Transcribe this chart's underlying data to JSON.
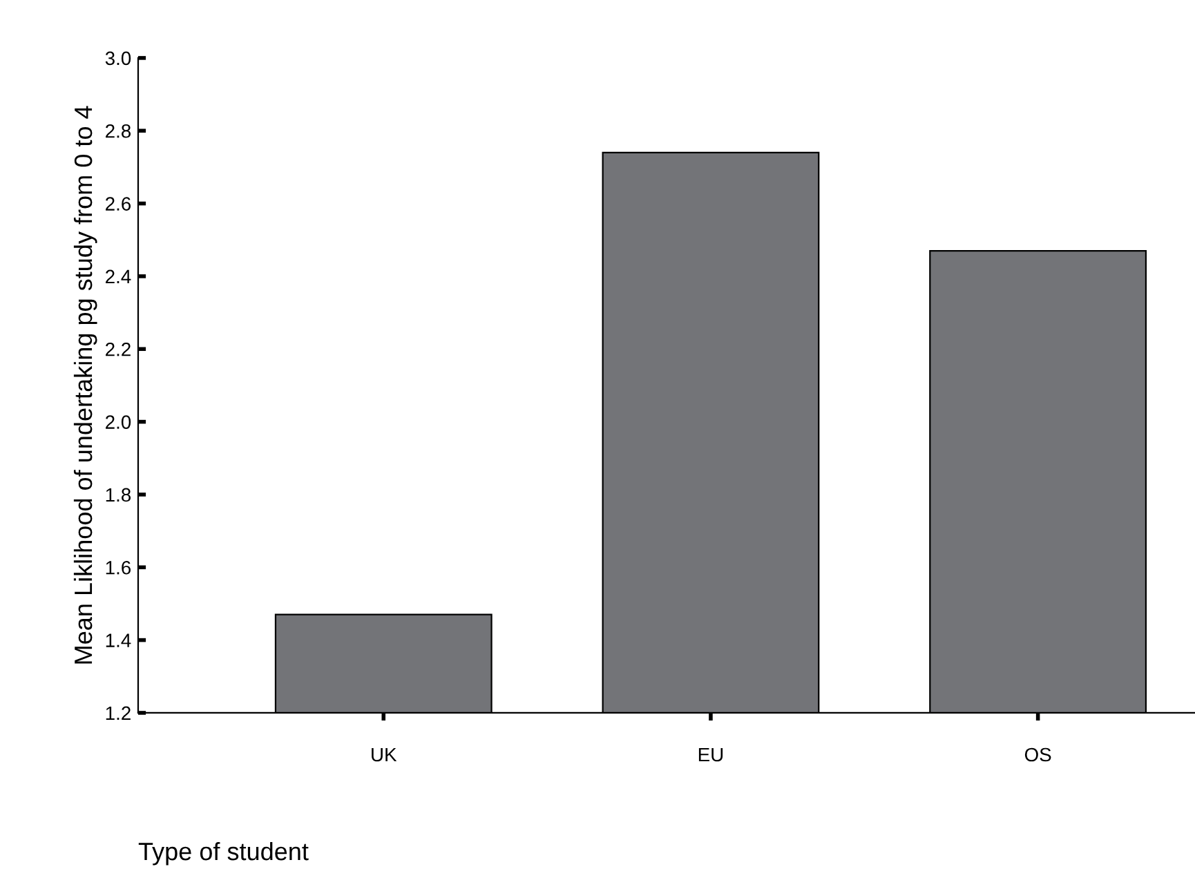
{
  "chart_data": {
    "type": "bar",
    "xlabel": "Type of student",
    "ylabel": "Mean Liklihood of undertaking pg study from 0 to 4",
    "categories": [
      "UK",
      "EU",
      "OS"
    ],
    "values": [
      1.47,
      2.74,
      2.47
    ],
    "color": "#737478",
    "ylim": [
      1.2,
      3.0
    ],
    "yticks": [
      {
        "value": 1.2,
        "label": "1.2"
      },
      {
        "value": 1.4,
        "label": "1.4"
      },
      {
        "value": 1.6,
        "label": "1.6"
      },
      {
        "value": 1.8,
        "label": "1.8"
      },
      {
        "value": 2.0,
        "label": "2.0"
      },
      {
        "value": 2.2,
        "label": "2.2"
      },
      {
        "value": 2.4,
        "label": "2.4"
      },
      {
        "value": 2.6,
        "label": "2.6"
      },
      {
        "value": 2.8,
        "label": "2.8"
      },
      {
        "value": 3.0,
        "label": "3.0"
      }
    ],
    "grid": false
  }
}
